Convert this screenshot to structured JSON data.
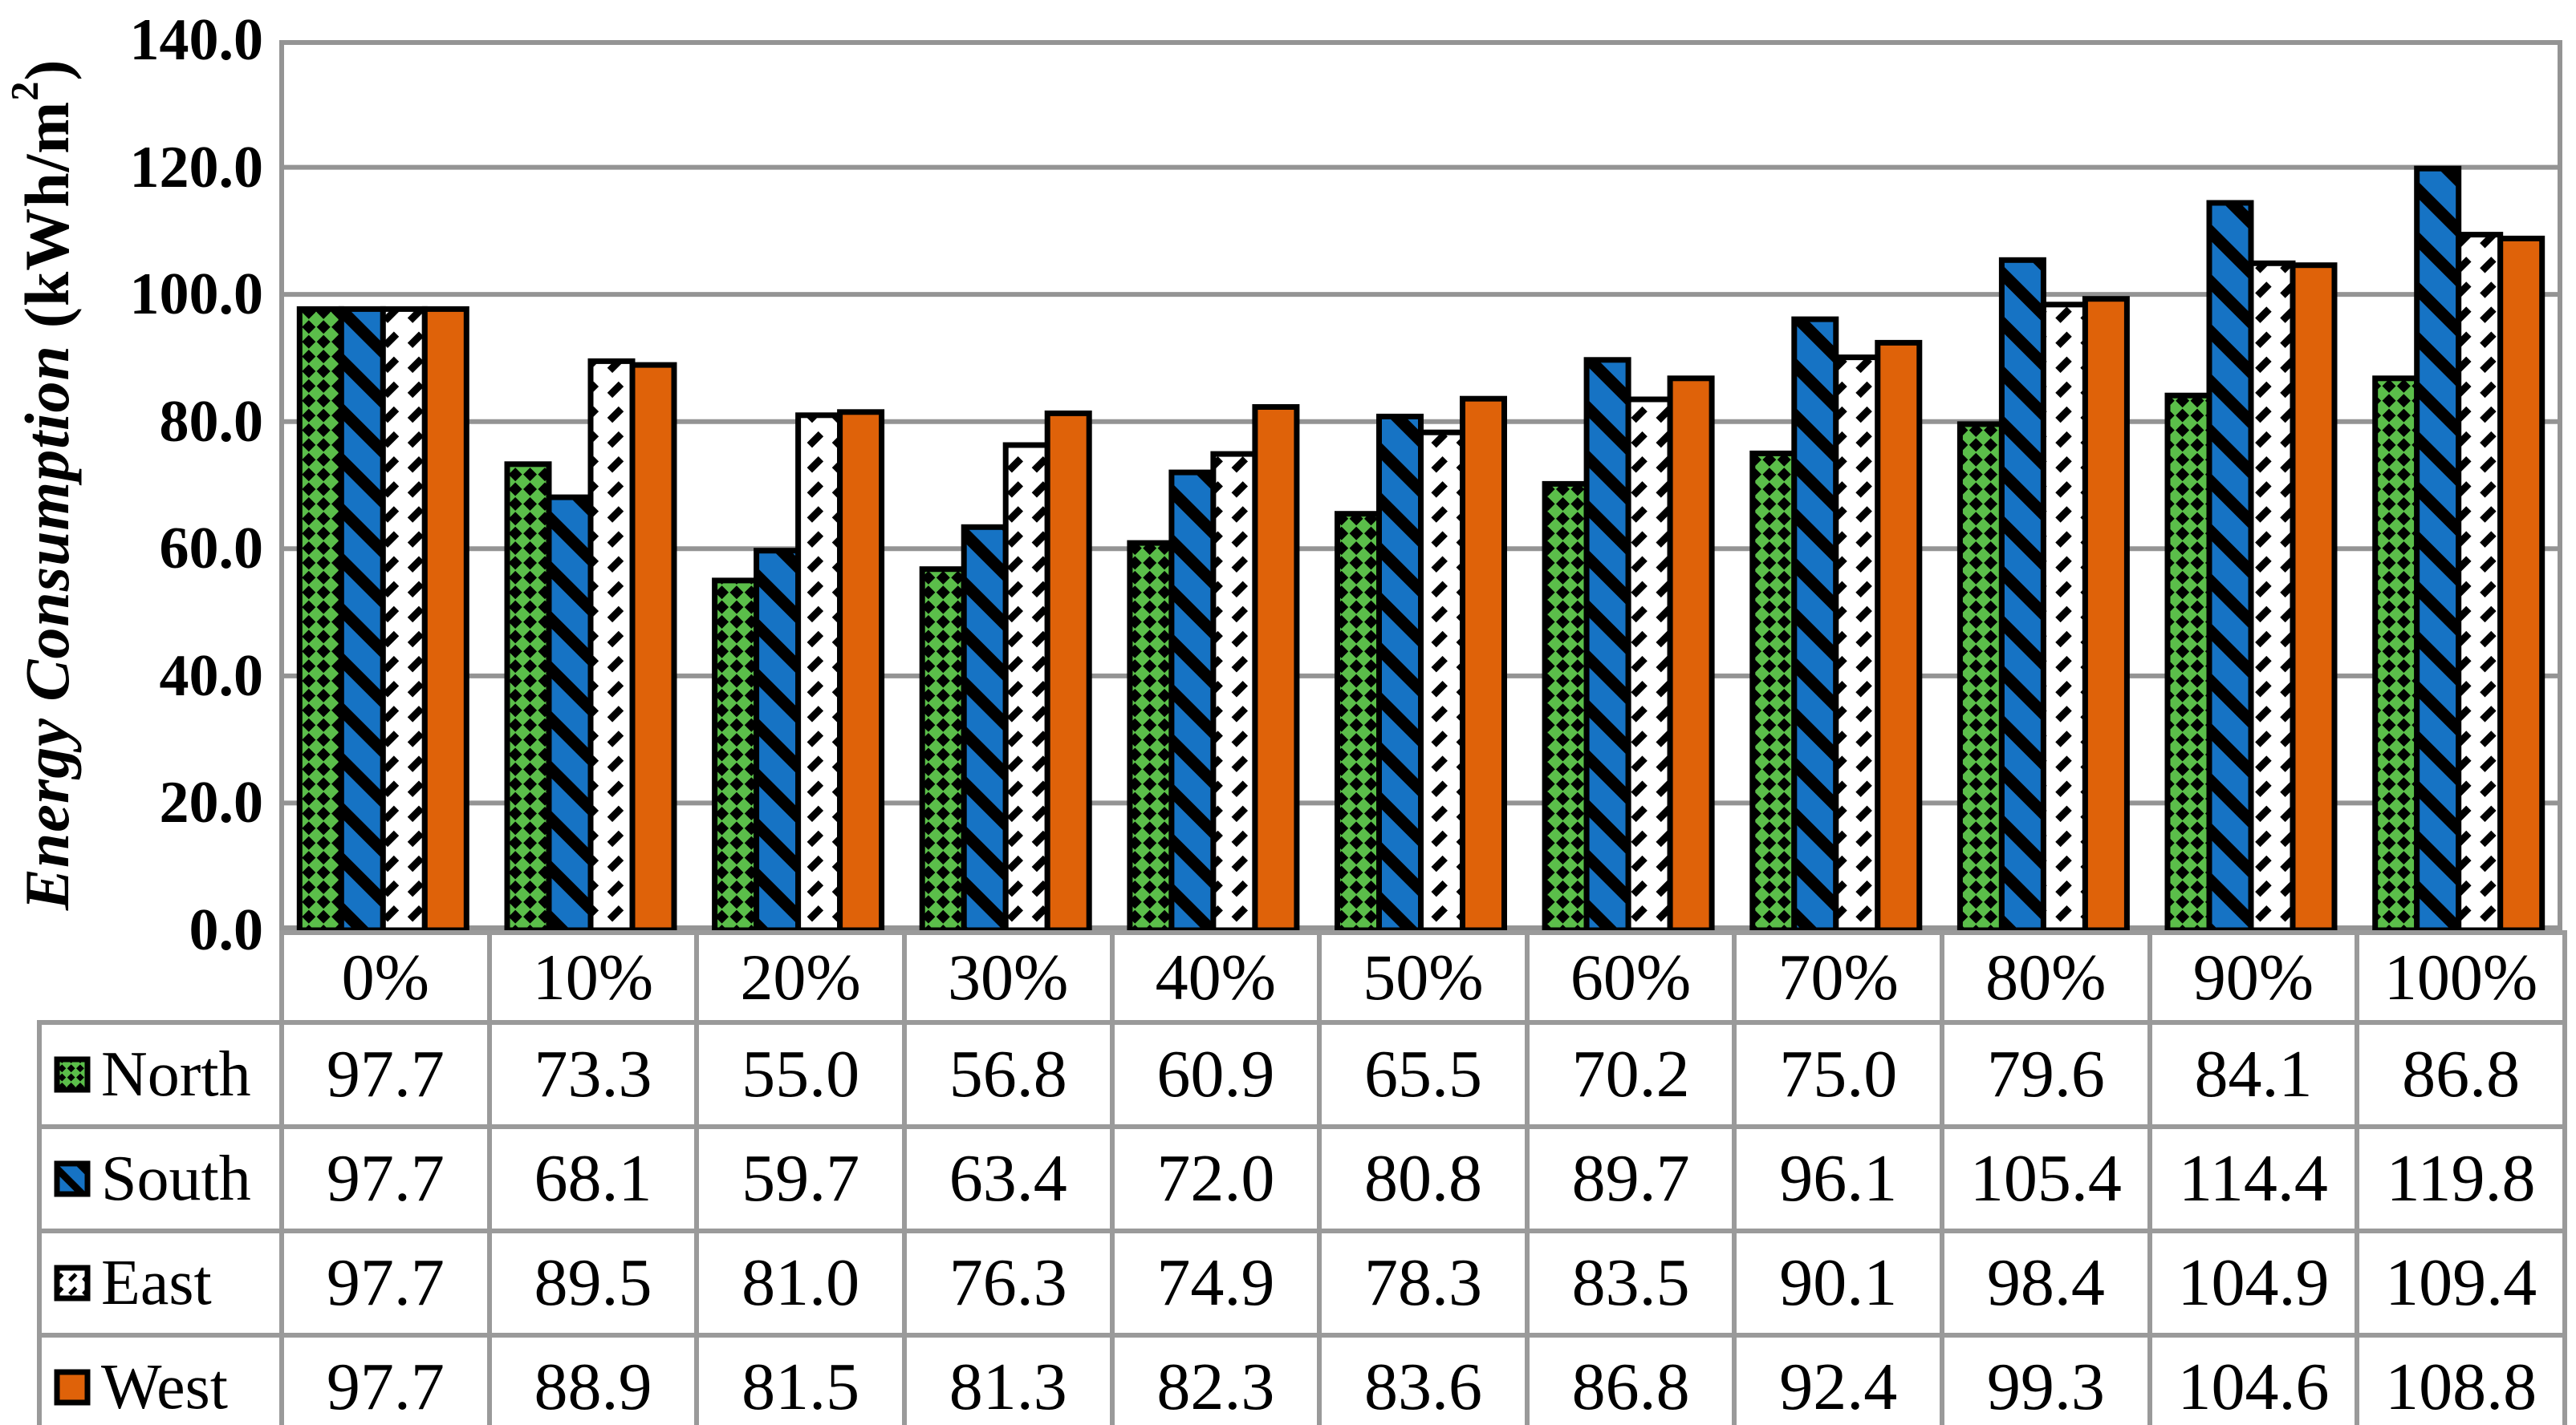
{
  "chart_data": {
    "type": "bar",
    "title": "",
    "ylabel": {
      "italic": "Energy Consumption",
      "unit_prefix": "(kWh/m",
      "unit_sup": "2",
      "unit_suffix": ")"
    },
    "categories": [
      "0%",
      "10%",
      "20%",
      "30%",
      "40%",
      "50%",
      "60%",
      "70%",
      "80%",
      "90%",
      "100%"
    ],
    "series": [
      {
        "name": "North",
        "key": "north",
        "pattern": "checker",
        "color": "#5BBE4A",
        "values": [
          97.7,
          73.3,
          55.0,
          56.8,
          60.9,
          65.5,
          70.2,
          75.0,
          79.6,
          84.1,
          86.8
        ]
      },
      {
        "name": "South",
        "key": "south",
        "pattern": "diagonal-stripe-down",
        "color": "#1673C4",
        "values": [
          97.7,
          68.1,
          59.7,
          63.4,
          72.0,
          80.8,
          89.7,
          96.1,
          105.4,
          114.4,
          119.8
        ]
      },
      {
        "name": "East",
        "key": "east",
        "pattern": "dashed-diagonal-up",
        "color": "#FFFFFF",
        "values": [
          97.7,
          89.5,
          81.0,
          76.3,
          74.9,
          78.3,
          83.5,
          90.1,
          98.4,
          104.9,
          109.4
        ]
      },
      {
        "name": "West",
        "key": "west",
        "pattern": "solid",
        "color": "#DF6209",
        "values": [
          97.7,
          88.9,
          81.5,
          81.3,
          82.3,
          83.6,
          86.8,
          92.4,
          99.3,
          104.6,
          108.8
        ]
      }
    ],
    "ylim": [
      0,
      140
    ],
    "ytick_step": 20,
    "ytick_labels": [
      "0.0",
      "20.0",
      "40.0",
      "60.0",
      "80.0",
      "100.0",
      "120.0",
      "140.0"
    ],
    "grid": true,
    "gridline_color": "#949494",
    "table_border_color": "#9a9a9a",
    "bar_border_color": "#000000",
    "legend_position": "table-left"
  }
}
